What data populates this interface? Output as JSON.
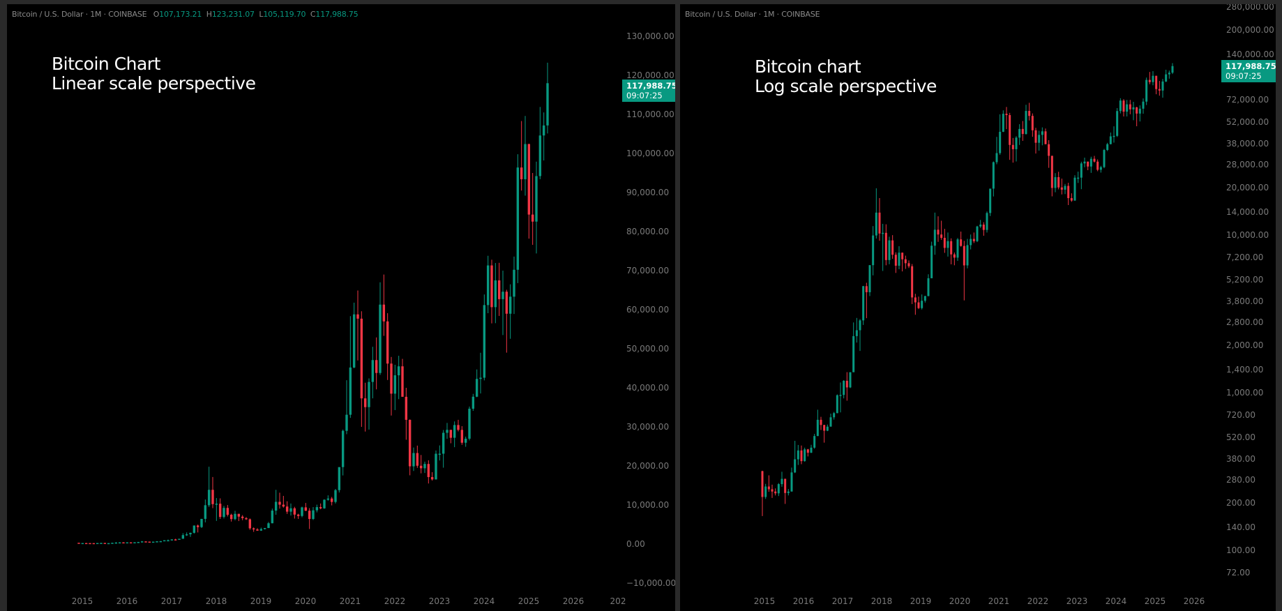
{
  "left_panel": {
    "legend": {
      "symbol": "Bitcoin / U.S. Dollar · 1M · COINBASE",
      "open_label": "O",
      "open": "107,173.21",
      "high_label": "H",
      "high": "123,231.07",
      "low_label": "L",
      "low": "105,119.70",
      "close_label": "C",
      "close": "117,988.75"
    },
    "title_line1": "Bitcoin Chart",
    "title_line2": "Linear scale perspective",
    "price_tag": {
      "price": "117,988.75",
      "countdown": "09:07:25"
    }
  },
  "right_panel": {
    "legend": {
      "symbol": "Bitcoin / U.S. Dollar · 1M · COINBASE"
    },
    "title_line1": "Bitcoin chart",
    "title_line2": "Log scale perspective",
    "price_tag": {
      "price": "117,988.75",
      "countdown": "09:07:25"
    }
  },
  "colors": {
    "up": "#089981",
    "down": "#f23645",
    "background": "#000000",
    "frame": "#2a2a2a",
    "axis_text": "#7a7a7a"
  },
  "chart_data": [
    {
      "type": "candlestick",
      "title": "Bitcoin Chart — Linear scale perspective",
      "scale": "linear",
      "ylabel": "USD",
      "ylim": [
        -10000,
        130000
      ],
      "y_ticks": [
        "130,000.00",
        "120,000.00",
        "110,000.00",
        "100,000.00",
        "90,000.00",
        "80,000.00",
        "70,000.00",
        "60,000.00",
        "50,000.00",
        "40,000.00",
        "30,000.00",
        "20,000.00",
        "10,000.00",
        "0.00",
        "−10,000.00"
      ],
      "x_ticks": [
        "2015",
        "2016",
        "2017",
        "2018",
        "2019",
        "2020",
        "2021",
        "2022",
        "2023",
        "2024",
        "2025",
        "2026",
        "202"
      ],
      "grid": false,
      "last_price": 117988.75
    },
    {
      "type": "candlestick",
      "title": "Bitcoin chart — Log scale perspective",
      "scale": "log",
      "ylabel": "USD",
      "ylim": [
        60,
        290000
      ],
      "y_ticks": [
        "280,000.00",
        "200,000.00",
        "140,000.00",
        "72,000.00",
        "52,000.00",
        "38,000.00",
        "28,000.00",
        "20,000.00",
        "14,000.00",
        "10,000.00",
        "7,200.00",
        "5,200.00",
        "3,800.00",
        "2,800.00",
        "2,000.00",
        "1,400.00",
        "1,000.00",
        "720.00",
        "520.00",
        "380.00",
        "280.00",
        "200.00",
        "140.00",
        "100.00",
        "72.00"
      ],
      "x_ticks": [
        "2015",
        "2016",
        "2017",
        "2018",
        "2019",
        "2020",
        "2021",
        "2022",
        "2023",
        "2024",
        "2025",
        "2026"
      ],
      "grid": false,
      "last_price": 117988.75
    }
  ],
  "ohlc_monthly": {
    "start": "2015-01",
    "interval": "1M",
    "fields": [
      "open",
      "high",
      "low",
      "close"
    ],
    "candles": [
      [
        318,
        320,
        165,
        218
      ],
      [
        218,
        264,
        212,
        254
      ],
      [
        254,
        299,
        235,
        244
      ],
      [
        244,
        261,
        215,
        236
      ],
      [
        236,
        247,
        223,
        230
      ],
      [
        230,
        267,
        221,
        263
      ],
      [
        263,
        315,
        253,
        284
      ],
      [
        284,
        285,
        197,
        231
      ],
      [
        231,
        245,
        223,
        236
      ],
      [
        236,
        335,
        236,
        312
      ],
      [
        312,
        495,
        309,
        378
      ],
      [
        378,
        466,
        348,
        430
      ],
      [
        430,
        462,
        352,
        368
      ],
      [
        368,
        448,
        365,
        437
      ],
      [
        437,
        440,
        394,
        416
      ],
      [
        416,
        467,
        414,
        448
      ],
      [
        448,
        548,
        441,
        531
      ],
      [
        531,
        780,
        530,
        673
      ],
      [
        673,
        703,
        580,
        624
      ],
      [
        624,
        626,
        482,
        574
      ],
      [
        574,
        628,
        570,
        609
      ],
      [
        609,
        737,
        609,
        698
      ],
      [
        698,
        755,
        675,
        742
      ],
      [
        742,
        975,
        740,
        964
      ],
      [
        964,
        1160,
        750,
        968
      ],
      [
        968,
        1200,
        920,
        1190
      ],
      [
        1190,
        1350,
        890,
        1080
      ],
      [
        1080,
        1350,
        1070,
        1348
      ],
      [
        1348,
        2790,
        1350,
        2285
      ],
      [
        2285,
        2980,
        2080,
        2490
      ],
      [
        2490,
        2930,
        1840,
        2875
      ],
      [
        2875,
        4760,
        2690,
        4740
      ],
      [
        4740,
        4980,
        2970,
        4340
      ],
      [
        4340,
        6450,
        4100,
        6440
      ],
      [
        6440,
        11400,
        5550,
        9940
      ],
      [
        9940,
        19800,
        9500,
        13880
      ],
      [
        13880,
        17170,
        9200,
        10220
      ],
      [
        10220,
        11780,
        5920,
        10330
      ],
      [
        10330,
        11700,
        6430,
        6940
      ],
      [
        6940,
        9760,
        6530,
        9250
      ],
      [
        9250,
        9990,
        7070,
        7500
      ],
      [
        7500,
        7770,
        5750,
        6390
      ],
      [
        6390,
        8500,
        6070,
        7730
      ],
      [
        7730,
        7750,
        5880,
        7020
      ],
      [
        7020,
        7400,
        6100,
        6630
      ],
      [
        6630,
        6900,
        6180,
        6340
      ],
      [
        6340,
        6550,
        3650,
        4020
      ],
      [
        4020,
        4240,
        3120,
        3740
      ],
      [
        3740,
        4070,
        3390,
        3440
      ],
      [
        3440,
        4200,
        3370,
        3830
      ],
      [
        3830,
        4120,
        3730,
        4100
      ],
      [
        4100,
        5640,
        4090,
        5320
      ],
      [
        5320,
        9080,
        5320,
        8560
      ],
      [
        8560,
        13880,
        7500,
        10810
      ],
      [
        10810,
        13150,
        9060,
        10080
      ],
      [
        10080,
        12330,
        9330,
        9600
      ],
      [
        9600,
        10950,
        7710,
        8290
      ],
      [
        8290,
        10370,
        7300,
        9150
      ],
      [
        9150,
        9530,
        6520,
        7540
      ],
      [
        7540,
        7750,
        6430,
        7190
      ],
      [
        7190,
        9580,
        6860,
        9390
      ],
      [
        9390,
        10520,
        8440,
        8530
      ],
      [
        8530,
        9190,
        3850,
        6420
      ],
      [
        6420,
        9460,
        6150,
        8630
      ],
      [
        8630,
        10080,
        8110,
        9450
      ],
      [
        9450,
        10380,
        8900,
        9140
      ],
      [
        9140,
        11440,
        9020,
        11340
      ],
      [
        11340,
        12470,
        11100,
        11650
      ],
      [
        11650,
        12060,
        9900,
        10780
      ],
      [
        10780,
        14100,
        10380,
        13800
      ],
      [
        13800,
        19480,
        13200,
        19700
      ],
      [
        19700,
        29300,
        17570,
        28990
      ],
      [
        28990,
        41950,
        28130,
        33100
      ],
      [
        33100,
        58350,
        32300,
        45200
      ],
      [
        45200,
        61800,
        45000,
        58800
      ],
      [
        58800,
        64900,
        47000,
        57700
      ],
      [
        57700,
        59600,
        30000,
        37300
      ],
      [
        37300,
        41300,
        28800,
        35050
      ],
      [
        35050,
        42400,
        29300,
        41500
      ],
      [
        41500,
        50500,
        37300,
        47100
      ],
      [
        47100,
        52900,
        39600,
        43800
      ],
      [
        43800,
        67000,
        43300,
        61300
      ],
      [
        61300,
        69000,
        53300,
        57000
      ],
      [
        57000,
        59100,
        42000,
        46200
      ],
      [
        46200,
        47900,
        32900,
        38500
      ],
      [
        38500,
        45900,
        34300,
        43200
      ],
      [
        43200,
        48200,
        37100,
        45500
      ],
      [
        45500,
        47400,
        37700,
        37700
      ],
      [
        37700,
        40000,
        26700,
        31800
      ],
      [
        31800,
        31900,
        17600,
        19900
      ],
      [
        19900,
        24700,
        18700,
        23300
      ],
      [
        23300,
        25200,
        19500,
        20050
      ],
      [
        20050,
        22800,
        18100,
        19400
      ],
      [
        19400,
        21100,
        18200,
        20500
      ],
      [
        20500,
        21450,
        15500,
        17150
      ],
      [
        17150,
        18400,
        16250,
        16550
      ],
      [
        16550,
        23950,
        16500,
        23120
      ],
      [
        23120,
        25250,
        21400,
        23130
      ],
      [
        23130,
        29200,
        19550,
        28480
      ],
      [
        28480,
        31000,
        26950,
        29240
      ],
      [
        29240,
        29250,
        25800,
        27210
      ],
      [
        27210,
        31400,
        24800,
        30470
      ],
      [
        30470,
        31800,
        28850,
        29230
      ],
      [
        29230,
        30180,
        25400,
        25940
      ],
      [
        25940,
        27500,
        24900,
        26970
      ],
      [
        26970,
        35200,
        26550,
        34650
      ],
      [
        34650,
        38450,
        34100,
        37720
      ],
      [
        37720,
        44700,
        37600,
        42280
      ],
      [
        42280,
        48970,
        38550,
        42580
      ],
      [
        42580,
        63900,
        41900,
        61180
      ],
      [
        61180,
        73800,
        59100,
        71330
      ],
      [
        71330,
        72800,
        56500,
        60650
      ],
      [
        60650,
        71950,
        56550,
        67500
      ],
      [
        67500,
        72000,
        58400,
        62700
      ],
      [
        62700,
        70000,
        53500,
        64600
      ],
      [
        64600,
        65100,
        49000,
        58970
      ],
      [
        58970,
        66500,
        52550,
        63330
      ],
      [
        63330,
        73600,
        58900,
        70220
      ],
      [
        70220,
        99800,
        66800,
        96400
      ],
      [
        96400,
        108300,
        90500,
        93400
      ],
      [
        93400,
        109600,
        89200,
        102400
      ],
      [
        102400,
        102500,
        78200,
        84350
      ],
      [
        84350,
        95000,
        76600,
        82550
      ],
      [
        82550,
        97900,
        74400,
        94200
      ],
      [
        94200,
        111900,
        93400,
        104600
      ],
      [
        104600,
        110500,
        98200,
        107170
      ],
      [
        107173.21,
        123231.07,
        105119.7,
        117988.75
      ]
    ]
  }
}
